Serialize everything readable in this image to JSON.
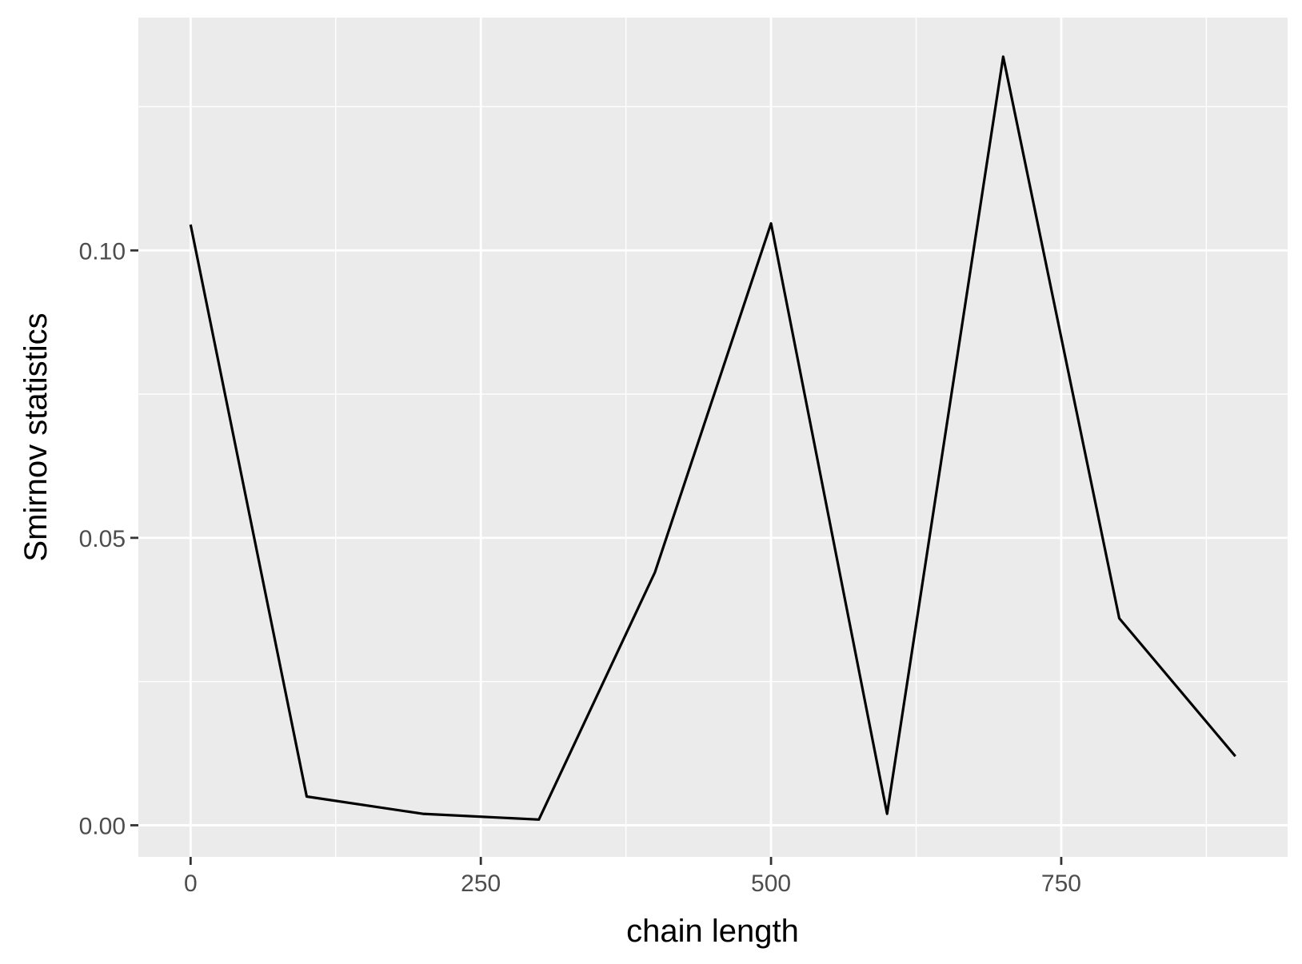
{
  "chart_data": {
    "type": "line",
    "title": "",
    "xlabel": "chain length",
    "ylabel": "Smirnov statistics",
    "x": [
      0,
      100,
      200,
      300,
      400,
      500,
      600,
      700,
      800,
      900
    ],
    "series": [
      {
        "values": [
          0.1045,
          0.005,
          0.002,
          0.001,
          0.044,
          0.1047,
          0.002,
          0.1337,
          0.036,
          0.012
        ]
      }
    ],
    "xlim": [
      -45,
      945
    ],
    "ylim": [
      -0.0055,
      0.1405
    ],
    "x_major_ticks": [
      0,
      250,
      500,
      750
    ],
    "x_tick_labels": [
      "0",
      "250",
      "500",
      "750"
    ],
    "x_minor_ticks": [
      125,
      375,
      625,
      875
    ],
    "y_major_ticks": [
      0.0,
      0.05,
      0.1
    ],
    "y_tick_labels": [
      "0.00",
      "0.05",
      "0.10"
    ],
    "y_minor_ticks": [
      0.025,
      0.075,
      0.125
    ],
    "grid": true,
    "legend": "none",
    "colors": {
      "panel_background": "#EBEBEB",
      "grid": "#FFFFFF",
      "line": "#000000",
      "tick_text": "#4D4D4D",
      "tick_mark": "#333333"
    }
  }
}
